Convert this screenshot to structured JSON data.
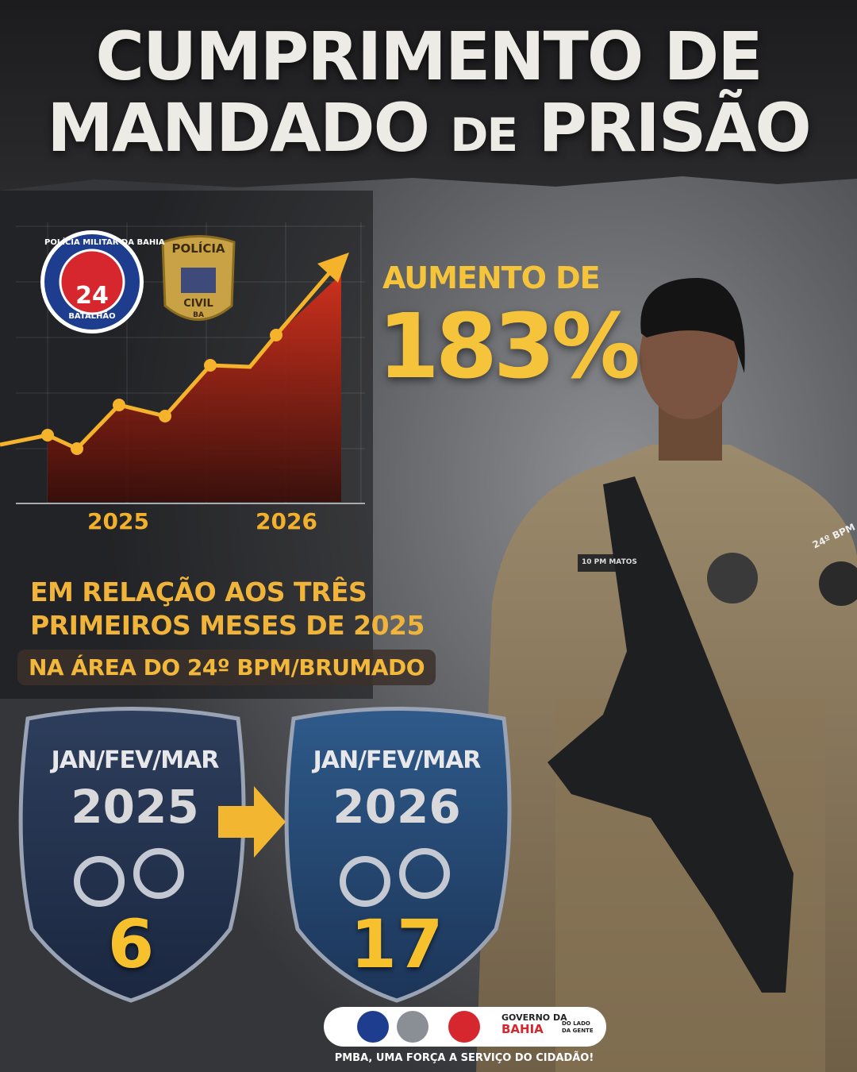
{
  "title": {
    "line1": "CUMPRIMENTO DE",
    "line2": [
      "MANDADO",
      "DE",
      "PRISÃO"
    ]
  },
  "logos": {
    "pm": {
      "arc": "POLÍCIA MILITAR DA BAHIA",
      "number": "24",
      "bottom": "BATALHÃO"
    },
    "pc": {
      "top": "POLÍCIA",
      "bottom": "CIVIL",
      "state": "BA"
    }
  },
  "trend": {
    "years": [
      "2025",
      "2026"
    ]
  },
  "highlight": {
    "label": "AUMENTO DE",
    "value": "183%"
  },
  "comparison": {
    "line1": "EM RELAÇÃO AOS TRÊS",
    "line2": "PRIMEIROS MESES DE 2025",
    "area": "NA ÁREA DO 24º BPM/BRUMADO"
  },
  "shields": [
    {
      "period": "JAN/FEV/MAR",
      "year": "2025",
      "count": 6
    },
    {
      "period": "JAN/FEV/MAR",
      "year": "2026",
      "count": 17
    }
  ],
  "soldier": {
    "name_tape": "10 PM MATOS",
    "shoulder_tab": "24º BPM"
  },
  "footer": {
    "gov_line1": "GOVERNO DA",
    "gov_line2": "BAHIA",
    "motto": "DO LADO DA GENTE",
    "tagline": "PMBA, UMA FORÇA A SERVIÇO DO CIDADÃO!"
  }
}
